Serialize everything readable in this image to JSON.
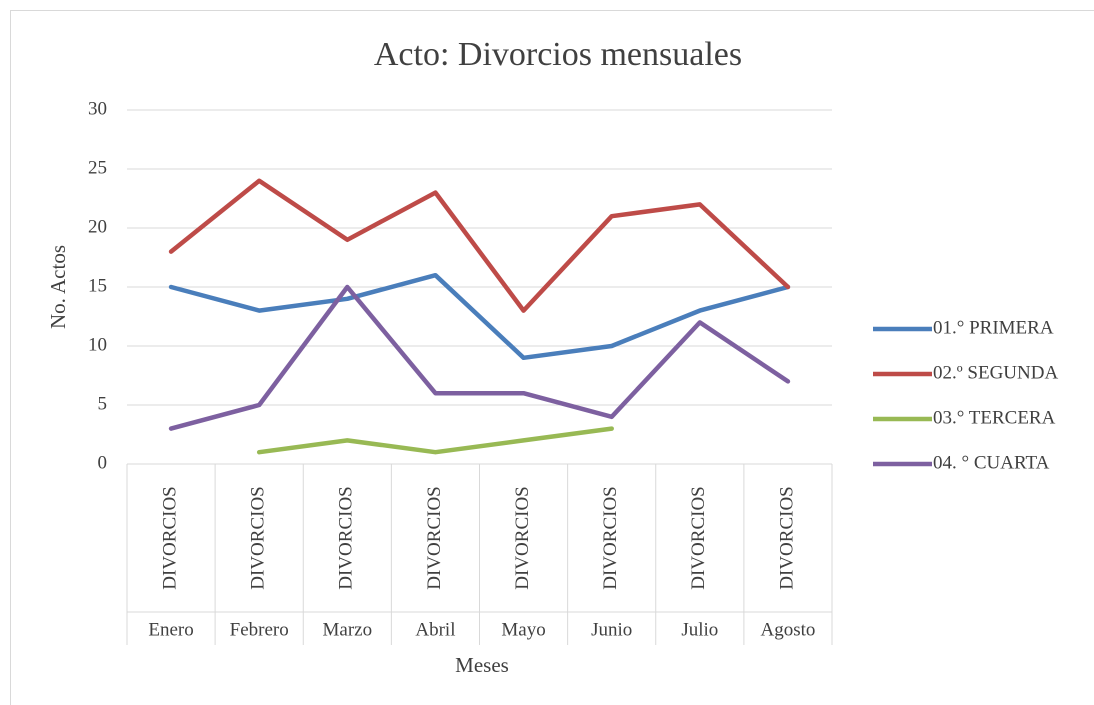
{
  "chart_data": {
    "type": "line",
    "title": "Acto: Divorcios mensuales",
    "x_label": "Meses",
    "y_label": "No. Actos",
    "categories": [
      "Enero",
      "Febrero",
      "Marzo",
      "Abril",
      "Mayo",
      "Junio",
      "Julio",
      "Agosto"
    ],
    "subcategories": [
      "DIVORCIOS",
      "DIVORCIOS",
      "DIVORCIOS",
      "DIVORCIOS",
      "DIVORCIOS",
      "DIVORCIOS",
      "DIVORCIOS",
      "DIVORCIOS"
    ],
    "series": [
      {
        "name": "01.° PRIMERA",
        "color": "#4a7ebb",
        "values": [
          15,
          13,
          14,
          16,
          9,
          10,
          13,
          15
        ]
      },
      {
        "name": "02.º SEGUNDA",
        "color": "#be4b48",
        "values": [
          18,
          24,
          19,
          23,
          13,
          21,
          22,
          15
        ]
      },
      {
        "name": "03.° TERCERA",
        "color": "#98b954",
        "values": [
          null,
          1,
          2,
          1,
          2,
          3,
          null,
          null
        ]
      },
      {
        "name": "04. ° CUARTA",
        "color": "#7d60a0",
        "values": [
          3,
          5,
          15,
          6,
          6,
          4,
          12,
          7
        ]
      }
    ],
    "ylim": [
      0,
      30
    ],
    "yticks": [
      0,
      5,
      10,
      15,
      20,
      25,
      30
    ],
    "grid": true,
    "legend": "right"
  }
}
